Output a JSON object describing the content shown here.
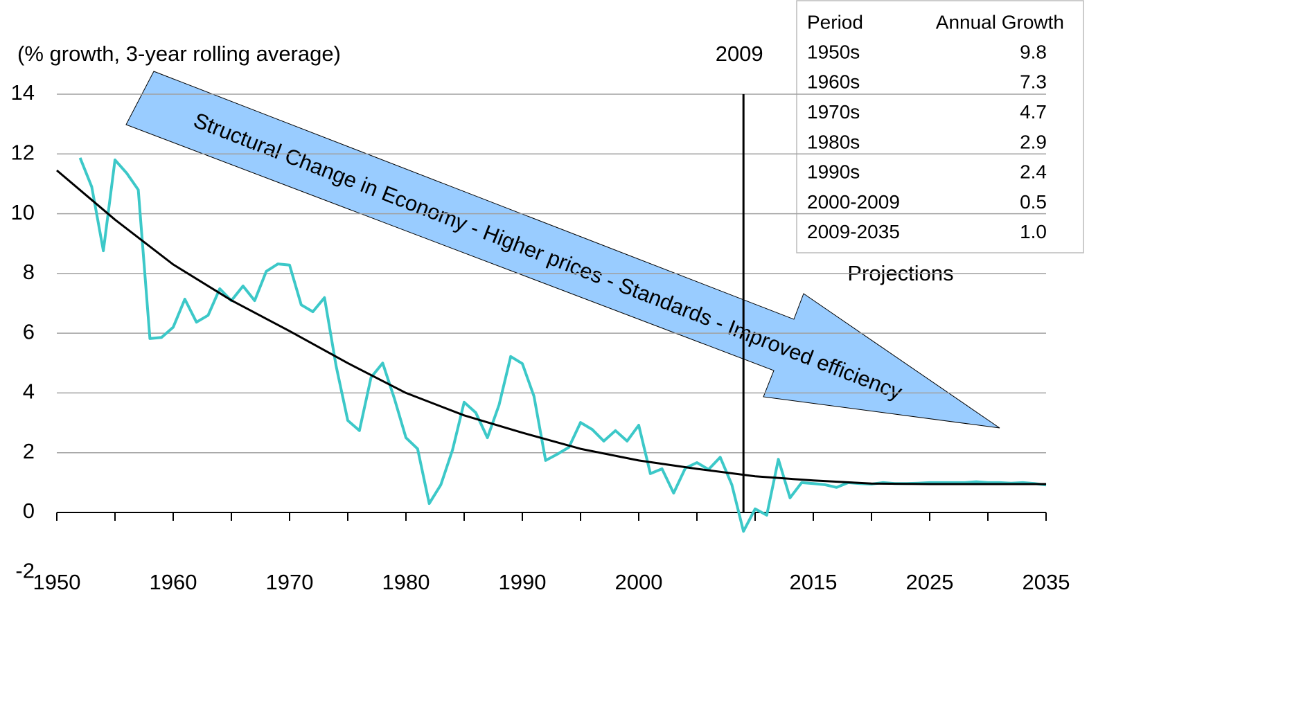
{
  "chart_data": {
    "type": "line",
    "y_label": "(% growth, 3-year rolling average)",
    "xlim": [
      1950,
      2035
    ],
    "xticks": [
      1950,
      {
        "value": 1955,
        "label": null
      },
      1960,
      {
        "value": 1965,
        "label": null
      },
      1970,
      {
        "value": 1975,
        "label": null
      },
      1980,
      {
        "value": 1985,
        "label": null
      },
      1990,
      {
        "value": 1995,
        "label": null
      },
      2000,
      {
        "value": 2005,
        "label": null
      },
      {
        "value": 2010,
        "label": null
      },
      2015,
      {
        "value": 2020,
        "label": null
      },
      2025,
      {
        "value": 2030,
        "label": null
      },
      2035
    ],
    "ylim": [
      -2,
      14
    ],
    "yticks": [
      -2,
      0,
      2,
      4,
      6,
      8,
      10,
      12,
      14
    ],
    "grid": true,
    "series": [
      {
        "name": null,
        "color": "#3cc8c8",
        "x": [
          1952,
          1953,
          1954,
          1955,
          1956,
          1957,
          1958,
          1959,
          1960,
          1961,
          1962,
          1963,
          1964,
          1965,
          1966,
          1967,
          1968,
          1969,
          1970,
          1971,
          1972,
          1973,
          1974,
          1975,
          1976,
          1977,
          1978,
          1979,
          1980,
          1981,
          1982,
          1983,
          1984,
          1985,
          1986,
          1987,
          1988,
          1989,
          1990,
          1991,
          1992,
          1993,
          1994,
          1995,
          1996,
          1997,
          1998,
          1999,
          2000,
          2001,
          2002,
          2003,
          2004,
          2005,
          2006,
          2007,
          2008,
          2009,
          2010,
          2011,
          2012,
          2013,
          2014,
          2015,
          2016,
          2017,
          2018,
          2019,
          2020,
          2021,
          2022,
          2023,
          2024,
          2025,
          2026,
          2027,
          2028,
          2029,
          2030,
          2031,
          2032,
          2033,
          2034,
          2035
        ],
        "values": [
          11.87,
          10.9,
          8.76,
          11.8,
          11.36,
          10.8,
          5.82,
          5.86,
          6.2,
          7.14,
          6.37,
          6.6,
          7.49,
          7.09,
          7.58,
          7.09,
          8.07,
          8.32,
          8.28,
          6.95,
          6.72,
          7.19,
          4.9,
          3.08,
          2.74,
          4.52,
          5.0,
          3.82,
          2.5,
          2.13,
          0.3,
          0.93,
          2.09,
          3.69,
          3.34,
          2.5,
          3.6,
          5.22,
          4.98,
          3.89,
          1.74,
          1.95,
          2.18,
          3.01,
          2.78,
          2.39,
          2.74,
          2.39,
          2.92,
          1.3,
          1.46,
          0.65,
          1.48,
          1.67,
          1.44,
          1.85,
          0.93,
          -0.63,
          0.12,
          -0.09,
          1.78,
          0.49,
          1.0,
          0.97,
          0.93,
          0.84,
          1.0,
          0.97,
          0.95,
          1.0,
          0.97,
          0.97,
          0.98,
          1.0,
          1.0,
          1.0,
          1.0,
          1.03,
          1.0,
          1.0,
          0.98,
          1.0,
          0.97,
          0.92
        ]
      },
      {
        "name": null,
        "color": "#000000",
        "x": [
          1950,
          1955,
          1960,
          1965,
          1970,
          1975,
          1980,
          1985,
          1990,
          1995,
          2000,
          2005,
          2010,
          2015,
          2020,
          2025,
          2030,
          2035
        ],
        "values": [
          11.45,
          9.8,
          8.3,
          7.1,
          6.07,
          5.0,
          4.0,
          3.25,
          2.67,
          2.13,
          1.74,
          1.46,
          1.21,
          1.07,
          0.97,
          0.95,
          0.95,
          0.95
        ]
      }
    ],
    "vline": {
      "x": 2009,
      "label": "2009"
    },
    "annotations": [
      "Projections",
      "Structural Change in Economy - Higher prices - Standards - Improved efficiency"
    ],
    "table": {
      "columns": [
        "Period",
        "Annual Growth"
      ],
      "rows": [
        [
          "1950s",
          "9.8"
        ],
        [
          "1960s",
          "7.3"
        ],
        [
          "1970s",
          "4.7"
        ],
        [
          "1980s",
          "2.9"
        ],
        [
          "1990s",
          "2.4"
        ],
        [
          "2000-2009",
          "0.5"
        ],
        [
          "2009-2035",
          "1.0"
        ]
      ]
    }
  }
}
